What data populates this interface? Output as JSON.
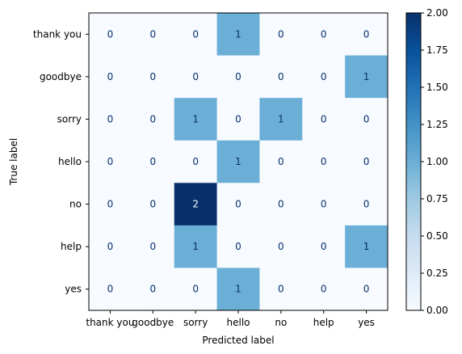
{
  "chart_data": {
    "type": "heatmap",
    "title": "",
    "xlabel": "Predicted label",
    "ylabel": "True label",
    "x_categories": [
      "thank you",
      "goodbye",
      "sorry",
      "hello",
      "no",
      "help",
      "yes"
    ],
    "y_categories": [
      "thank you",
      "goodbye",
      "sorry",
      "hello",
      "no",
      "help",
      "yes"
    ],
    "values": [
      [
        0,
        0,
        0,
        1,
        0,
        0,
        0
      ],
      [
        0,
        0,
        0,
        0,
        0,
        0,
        1
      ],
      [
        0,
        0,
        1,
        0,
        1,
        0,
        0
      ],
      [
        0,
        0,
        0,
        1,
        0,
        0,
        0
      ],
      [
        0,
        0,
        2,
        0,
        0,
        0,
        0
      ],
      [
        0,
        0,
        1,
        0,
        0,
        0,
        1
      ],
      [
        0,
        0,
        0,
        1,
        0,
        0,
        0
      ]
    ],
    "colormap": "Blues",
    "colorbar": {
      "min": 0,
      "max": 2,
      "ticks": [
        "0.00",
        "0.25",
        "0.50",
        "0.75",
        "1.00",
        "1.25",
        "1.50",
        "1.75",
        "2.00"
      ]
    },
    "colors": {
      "low": "#f7fbff",
      "mid": "#6aaed6",
      "high": "#08306b",
      "text_dark": "#08306b",
      "text_light": "#ffffff"
    },
    "grid": false
  }
}
